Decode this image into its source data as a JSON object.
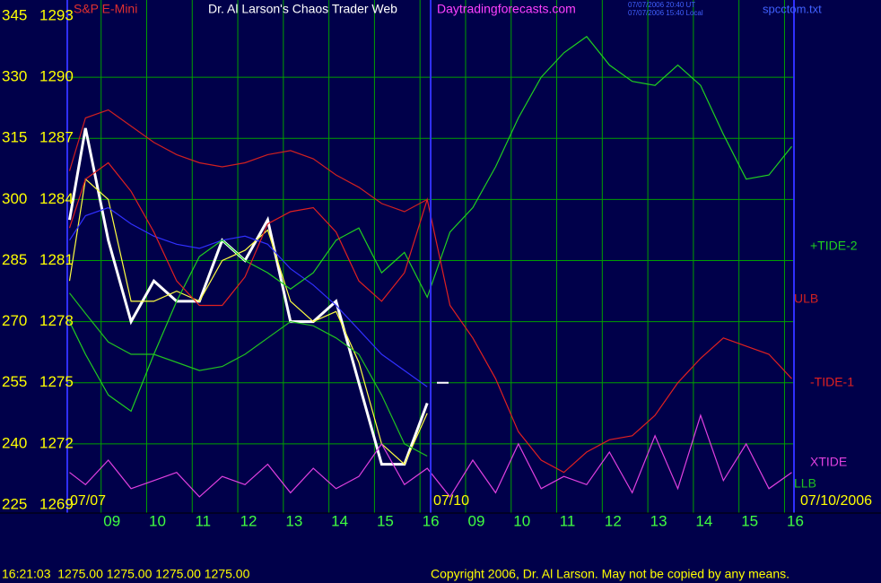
{
  "chart_data": {
    "type": "line",
    "title": "Dr. Al Larson's Chaos Trader Web",
    "symbol": "S&P E-Mini",
    "website": "Daytradingforecasts.com",
    "timestamps": [
      "07/07/2006 20:40 UT",
      "07/07/2006 15:40 Local"
    ],
    "file": "spcctom.txt",
    "date_labels": [
      "07/07",
      "07/10",
      "07/10/2006"
    ],
    "status": "16:21:03  1275.00 1275.00 1275.00 1275.00",
    "copyright": "Copyright 2006, Dr. Al Larson. May not be copied by any means.",
    "x": [
      -0.85,
      -0.5,
      0,
      0.5,
      1,
      1.5,
      2,
      2.5,
      3,
      3.5,
      4,
      4.5,
      5,
      5.5,
      6,
      6.5,
      7,
      7.5,
      8,
      8.5,
      9,
      9.5,
      10,
      10.5,
      11,
      11.5,
      12,
      12.5,
      13,
      13.5,
      14,
      14.5,
      15
    ],
    "xlim": [
      -0.9,
      15.05
    ],
    "xticks": [
      {
        "value": 0,
        "label": "09"
      },
      {
        "value": 1,
        "label": "10"
      },
      {
        "value": 2,
        "label": "11"
      },
      {
        "value": 3,
        "label": "12"
      },
      {
        "value": 4,
        "label": "13"
      },
      {
        "value": 5,
        "label": "14"
      },
      {
        "value": 6,
        "label": "15"
      },
      {
        "value": 7,
        "label": "16"
      },
      {
        "value": 8,
        "label": "09"
      },
      {
        "value": 9,
        "label": "10"
      },
      {
        "value": 10,
        "label": "11"
      },
      {
        "value": 11,
        "label": "12"
      },
      {
        "value": 12,
        "label": "13"
      },
      {
        "value": 13,
        "label": "14"
      },
      {
        "value": 14,
        "label": "15"
      },
      {
        "value": 15,
        "label": "16"
      }
    ],
    "ylim": [
      225,
      345
    ],
    "yticks": [
      225,
      240,
      255,
      270,
      285,
      300,
      315,
      330,
      345
    ],
    "y2lim": [
      1269,
      1293
    ],
    "y2ticks": [
      1269,
      1272,
      1275,
      1278,
      1281,
      1284,
      1287,
      1290,
      1293
    ],
    "grid": true,
    "last_price": 1275,
    "series": [
      {
        "color": "#ffffff",
        "axis": "y2",
        "values": [
          1283,
          1287.5,
          1282,
          1278,
          1280,
          1279,
          1279,
          1282,
          1281,
          1283,
          1278,
          1278,
          1279,
          1275,
          1271,
          1271,
          1274,
          null,
          null,
          null,
          null,
          null,
          null,
          null,
          null,
          null,
          null,
          null,
          null,
          null,
          null,
          null,
          null
        ]
      },
      {
        "color": "#ffff40",
        "axis": "y2",
        "values": [
          1280,
          1285,
          1284,
          1279,
          1279,
          1279.5,
          1279,
          1281,
          1281.5,
          1282.5,
          1279,
          1278,
          1278.5,
          1276,
          1272,
          1271,
          1273.5,
          null,
          null,
          null,
          null,
          null,
          null,
          null,
          null,
          null,
          null,
          null,
          null,
          null,
          null,
          null,
          null
        ]
      },
      {
        "color": "#3030ff",
        "values": [
          290,
          296,
          298,
          294,
          291,
          289,
          288,
          290,
          291,
          289,
          283,
          279,
          274,
          268,
          262,
          258,
          254,
          null,
          null,
          null,
          null,
          null,
          null,
          null,
          null,
          null,
          null,
          null,
          null,
          null,
          null,
          null,
          null
        ]
      },
      {
        "name": "+TIDE-2",
        "color": "#20d020",
        "values": [
          270,
          262,
          252,
          248,
          262,
          275,
          286,
          290,
          285,
          282,
          278,
          282,
          290,
          293,
          282,
          287,
          276,
          292,
          298,
          308,
          320,
          330,
          336,
          340,
          333,
          329,
          328,
          333,
          328,
          316,
          305,
          306,
          313
        ]
      },
      {
        "name": "ULB",
        "color": "#d02020",
        "values": [
          307,
          320,
          322,
          318,
          314,
          311,
          309,
          308,
          309,
          311,
          312,
          310,
          306,
          303,
          299,
          297,
          300,
          null,
          null,
          null,
          null,
          null,
          null,
          null,
          null,
          null,
          null,
          null,
          null,
          null,
          null,
          null,
          null
        ]
      },
      {
        "name": "-TIDE-1",
        "color": "#e02020",
        "values": [
          293,
          305,
          309,
          302,
          292,
          280,
          274,
          274,
          281,
          294,
          297,
          298,
          292,
          280,
          275,
          282,
          300,
          274,
          266,
          256,
          243,
          236,
          233,
          238,
          241,
          242,
          247,
          255,
          261,
          266,
          264,
          262,
          256
        ]
      },
      {
        "name": "XTIDE",
        "color": "#e040e0",
        "values": [
          233,
          230,
          236,
          229,
          231,
          233,
          227,
          232,
          230,
          235,
          228,
          234,
          229,
          232,
          240,
          230,
          234,
          227,
          236,
          228,
          240,
          229,
          232,
          230,
          238,
          228,
          242,
          229,
          247,
          231,
          240,
          229,
          233
        ]
      },
      {
        "name": "LLB",
        "color": "#20c020",
        "values": [
          277,
          272,
          265,
          262,
          262,
          260,
          258,
          259,
          262,
          266,
          270,
          269,
          266,
          262,
          252,
          240,
          237,
          null,
          null,
          null,
          null,
          null,
          null,
          null,
          null,
          null,
          null,
          null,
          null,
          null,
          null,
          null,
          null
        ]
      }
    ]
  }
}
